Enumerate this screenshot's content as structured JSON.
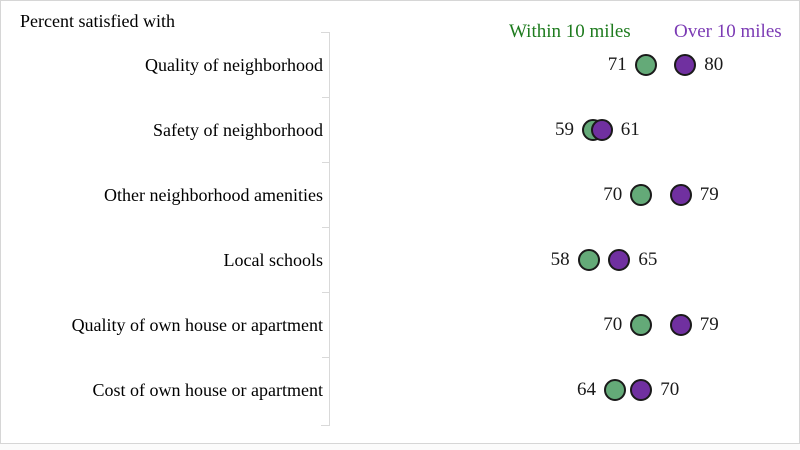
{
  "chart_data": {
    "type": "dot_plot",
    "title": "Percent satisfied with",
    "categories": [
      "Quality of neighborhood",
      "Safety of neighborhood",
      "Other neighborhood amenities",
      "Local schools",
      "Quality of own house or apartment",
      "Cost of own house or apartment"
    ],
    "series": [
      {
        "name": "Within 10 miles",
        "values": [
          71,
          59,
          70,
          58,
          70,
          64
        ],
        "dot_color": "#64aa78",
        "text_color": "#1e7b1e",
        "value_label_side": "left"
      },
      {
        "name": "Over 10 miles",
        "values": [
          80,
          61,
          79,
          65,
          79,
          70
        ],
        "dot_color": "#7030a0",
        "text_color": "#7b3ab4",
        "value_label_side": "right"
      }
    ],
    "legend_position": "top-right",
    "dot_outline_color": "#1a1a1a",
    "axis_bracket_color": "#d9d9d9",
    "value_axis_hidden": true,
    "xlim": [
      50,
      85
    ]
  }
}
